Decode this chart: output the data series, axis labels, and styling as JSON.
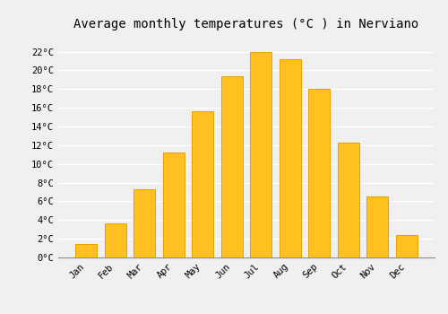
{
  "title": "Average monthly temperatures (°C ) in Nerviano",
  "months": [
    "Jan",
    "Feb",
    "Mar",
    "Apr",
    "May",
    "Jun",
    "Jul",
    "Aug",
    "Sep",
    "Oct",
    "Nov",
    "Dec"
  ],
  "values": [
    1.4,
    3.6,
    7.3,
    11.2,
    15.6,
    19.4,
    22.0,
    21.2,
    18.0,
    12.3,
    6.5,
    2.4
  ],
  "bar_color": "#FFC020",
  "bar_edge_color": "#E8A000",
  "ylim": [
    0,
    23.5
  ],
  "ytick_values": [
    0,
    2,
    4,
    6,
    8,
    10,
    12,
    14,
    16,
    18,
    20,
    22
  ],
  "background_color": "#f0f0f0",
  "grid_color": "#ffffff",
  "title_fontsize": 10,
  "tick_fontsize": 7.5
}
